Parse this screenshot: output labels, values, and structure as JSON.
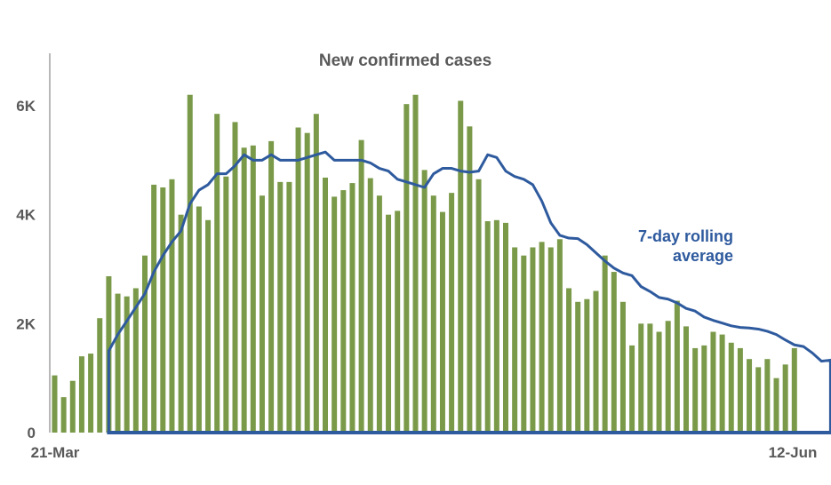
{
  "chart_data": {
    "type": "bar",
    "title": "New confirmed cases",
    "xlabel": "",
    "ylabel": "",
    "x_tick_labels": [
      "21-Mar",
      "12-Jun"
    ],
    "y_ticks": [
      {
        "value": 0,
        "label": "0"
      },
      {
        "value": 2000,
        "label": "2K"
      },
      {
        "value": 4000,
        "label": "4K"
      },
      {
        "value": 6000,
        "label": "6K"
      }
    ],
    "ylim": [
      0,
      7000
    ],
    "grid": false,
    "series": [
      {
        "type": "bar",
        "color": "#7A9A4A",
        "values": [
          1050,
          650,
          950,
          1400,
          1450,
          2100,
          2870,
          2550,
          2500,
          2650,
          3250,
          4550,
          4500,
          4650,
          4000,
          6200,
          4150,
          3900,
          5850,
          4700,
          5700,
          5230,
          5270,
          4350,
          5350,
          4600,
          4600,
          5600,
          5500,
          5850,
          4680,
          4330,
          4450,
          4580,
          5370,
          4670,
          4350,
          4000,
          4070,
          6030,
          6200,
          4820,
          4350,
          4050,
          4400,
          6090,
          5620,
          4650,
          3880,
          3900,
          3850,
          3400,
          3250,
          3400,
          3500,
          3400,
          3550,
          2650,
          2400,
          2450,
          2600,
          3250,
          2950,
          2400,
          1600,
          2000,
          2000,
          1850,
          2050,
          2420,
          1950,
          1550,
          1600,
          1850,
          1800,
          1650,
          1550,
          1350,
          1200,
          1350,
          1000,
          1250,
          1550
        ]
      },
      {
        "type": "line",
        "name": "7-day rolling average",
        "color": "#2E5A9E",
        "start_index": 6,
        "values": [
          1500,
          1800,
          2050,
          2300,
          2550,
          2950,
          3250,
          3500,
          3700,
          4200,
          4450,
          4550,
          4750,
          4750,
          4900,
          5100,
          5000,
          5000,
          5100,
          5000,
          5000,
          5000,
          5050,
          5100,
          5150,
          5000,
          5000,
          5000,
          5000,
          4950,
          4850,
          4800,
          4650,
          4600,
          4550,
          4500,
          4750,
          4850,
          4850,
          4800,
          4780,
          4800,
          5100,
          5050,
          4800,
          4700,
          4650,
          4550,
          4250,
          3850,
          3620,
          3570,
          3560,
          3450,
          3300,
          3150,
          3020,
          2930,
          2880,
          2680,
          2590,
          2480,
          2450,
          2380,
          2280,
          2230,
          2120,
          2060,
          2010,
          1960,
          1930,
          1920,
          1900,
          1860,
          1800,
          1700,
          1610,
          1580,
          1460,
          1310,
          1330
        ]
      }
    ],
    "annotation": {
      "line1": "7-day rolling",
      "line2": "average"
    }
  }
}
